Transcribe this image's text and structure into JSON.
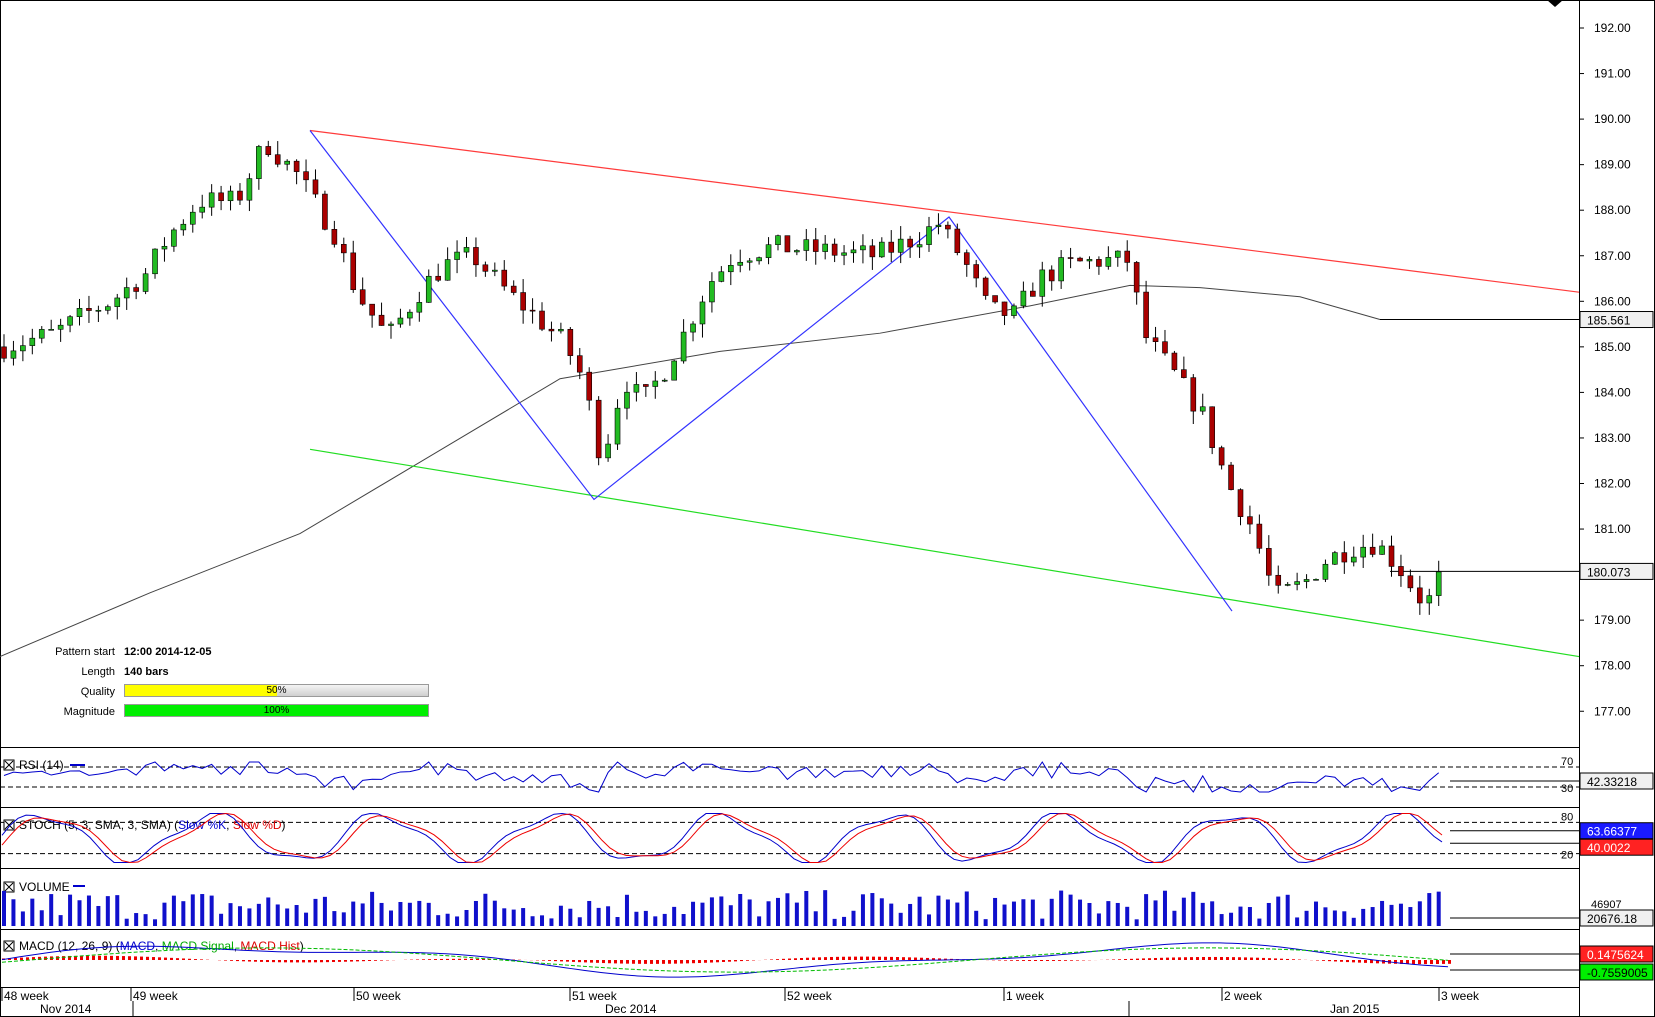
{
  "chart_data": {
    "type": "candlestick",
    "price_axis": {
      "min": 176.5,
      "max": 192.5,
      "ticks": [
        "192.00",
        "191.00",
        "190.00",
        "189.00",
        "188.00",
        "187.00",
        "186.00",
        "185.00",
        "184.00",
        "183.00",
        "182.00",
        "181.00",
        "180.00",
        "179.00",
        "178.00",
        "177.00"
      ]
    },
    "current_price": "180.073",
    "ma_label": "185.561",
    "pattern": {
      "start_label": "Pattern start",
      "start_value": "12:00 2014-12-05",
      "length_label": "Length",
      "length_value": "140 bars",
      "quality_label": "Quality",
      "quality_value": "50%",
      "quality_pct": 50,
      "magnitude_label": "Magnitude",
      "magnitude_value": "100%",
      "magnitude_pct": 100,
      "colors": {
        "resistance": "#ff3b3b",
        "support": "#22dd22",
        "zigzag": "#3333ff",
        "quality": "#ffff00",
        "magnitude": "#00ee00"
      }
    },
    "resistance_line": [
      [
        0,
        189.75
      ],
      [
        1,
        186.2
      ]
    ],
    "support_line": [
      [
        0,
        182.75
      ],
      [
        1,
        178.2
      ]
    ],
    "zigzag_points": [
      189.75,
      181.65,
      187.85,
      179.2
    ],
    "indicators": {
      "rsi": {
        "label": "RSI (14)",
        "level_high": "70",
        "level_low": "30",
        "value": "42.33218"
      },
      "stoch": {
        "label": "STOCH (5, 3, SMA, 3, SMA)",
        "slow_k": "Slow %K",
        "slow_d": "Slow %D",
        "level_high": "80",
        "level_low": "20",
        "k_value": "63.66377",
        "d_value": "40.0022"
      },
      "volume": {
        "label": "VOLUME",
        "top_tick": "46907",
        "value": "20676.18"
      },
      "macd": {
        "label": "MACD (12, 26, 9)",
        "line_name": "MACD",
        "signal_name": "MACD Signal",
        "hist_name": "MACD Hist",
        "macd_value": "0.1475624",
        "signal_value": "-0.7559005"
      }
    },
    "x_axis": {
      "weeks": [
        "48 week",
        "49 week",
        "50 week",
        "51 week",
        "52 week",
        "1 week",
        "2 week",
        "3 week"
      ],
      "months": [
        "Nov 2014",
        "Dec 2014",
        "Jan 2015"
      ]
    }
  }
}
